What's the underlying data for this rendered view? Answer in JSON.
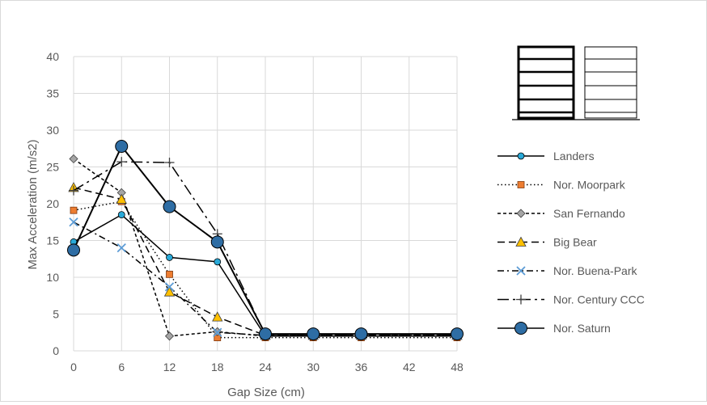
{
  "chart_data": {
    "type": "line",
    "title": "",
    "xlabel": "Gap Size (cm)",
    "ylabel": "Max Acceleration (m/s2)",
    "x_ticks": [
      0,
      6,
      12,
      18,
      24,
      30,
      36,
      42,
      48
    ],
    "y_ticks": [
      0,
      5,
      10,
      15,
      20,
      25,
      30,
      35,
      40
    ],
    "xlim": [
      0,
      48
    ],
    "ylim": [
      0,
      40
    ],
    "grid": "vertical and horizontal gridlines",
    "legend_position": "right",
    "series": [
      {
        "name": "Landers",
        "marker": "circle",
        "color": "#29a9d8",
        "dash": "solid",
        "x": [
          0,
          6,
          12,
          18,
          24,
          30,
          36,
          48
        ],
        "y": [
          14.8,
          18.5,
          12.7,
          12.1,
          2.0,
          2.0,
          2.0,
          2.0
        ]
      },
      {
        "name": "Nor. Moorpark",
        "marker": "square",
        "color": "#ed7d31",
        "dash": "dotted",
        "x": [
          0,
          6,
          12,
          18,
          24,
          30,
          36,
          48
        ],
        "y": [
          19.1,
          20.3,
          10.4,
          1.8,
          1.8,
          1.8,
          1.8,
          1.8
        ]
      },
      {
        "name": "San Fernando",
        "marker": "diamond",
        "color": "#a5a5a5",
        "dash": "dashed",
        "x": [
          0,
          6,
          12,
          18,
          24,
          30,
          36,
          48
        ],
        "y": [
          26.1,
          21.5,
          2.0,
          2.6,
          2.0,
          2.0,
          2.0,
          2.0
        ]
      },
      {
        "name": "Big Bear",
        "marker": "triangle",
        "color": "#ffc000",
        "dash": "longdash",
        "x": [
          0,
          6,
          12,
          18,
          24,
          30,
          36,
          48
        ],
        "y": [
          22.2,
          20.6,
          8.0,
          4.6,
          2.1,
          2.1,
          2.1,
          2.1
        ]
      },
      {
        "name": "Nor. Buena-Park",
        "marker": "x",
        "color": "#5b9bd5",
        "dash": "dashdot",
        "x": [
          0,
          6,
          12,
          18,
          24,
          30,
          36,
          48
        ],
        "y": [
          17.5,
          14.0,
          8.7,
          2.5,
          2.1,
          2.1,
          2.1,
          2.1
        ]
      },
      {
        "name": "Nor. Century CCC",
        "marker": "plus",
        "color": "#000000",
        "dash": "longdashdot",
        "x": [
          0,
          6,
          12,
          18,
          24,
          30,
          36,
          48
        ],
        "y": [
          21.8,
          25.7,
          25.6,
          15.9,
          2.2,
          2.2,
          2.2,
          2.2
        ]
      },
      {
        "name": "Nor. Saturn",
        "marker": "bigcircle",
        "color": "#2e6da4",
        "dash": "solid",
        "x": [
          0,
          6,
          12,
          18,
          24,
          30,
          36,
          48
        ],
        "y": [
          13.7,
          27.8,
          19.6,
          14.8,
          2.3,
          2.3,
          2.3,
          2.3
        ]
      }
    ]
  }
}
